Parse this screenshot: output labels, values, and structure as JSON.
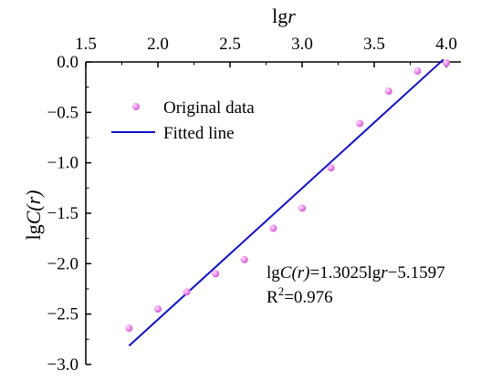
{
  "chart_data": {
    "type": "scatter",
    "xlabel_prefix": "lg",
    "xlabel_var": "r",
    "ylabel_prefix": "lg",
    "ylabel_var": "C(r)",
    "xlim": [
      1.5,
      4.0
    ],
    "ylim": [
      -3.0,
      0.0
    ],
    "xticks": [
      "1.5",
      "2.0",
      "2.5",
      "3.0",
      "3.5",
      "4.0"
    ],
    "yticks": [
      "0.0",
      "−0.5",
      "−1.0",
      "−1.5",
      "−2.0",
      "−2.5",
      "−3.0"
    ],
    "xtick_values": [
      1.5,
      2.0,
      2.5,
      3.0,
      3.5,
      4.0
    ],
    "ytick_values": [
      0.0,
      -0.5,
      -1.0,
      -1.5,
      -2.0,
      -2.5,
      -3.0
    ],
    "series": [
      {
        "name": "Original data",
        "kind": "scatter",
        "color": "#f07ef0",
        "x": [
          1.8,
          2.0,
          2.2,
          2.4,
          2.6,
          2.8,
          3.0,
          3.2,
          3.4,
          3.6,
          3.8,
          4.0
        ],
        "y": [
          -2.64,
          -2.45,
          -2.28,
          -2.1,
          -1.96,
          -1.65,
          -1.45,
          -1.05,
          -0.61,
          -0.29,
          -0.09,
          -0.01
        ]
      },
      {
        "name": "Fitted line",
        "kind": "line",
        "color": "#1010c8",
        "slope": 1.3025,
        "intercept": -5.1597,
        "x_range": [
          1.8,
          3.98
        ]
      }
    ],
    "legend_position": "upper-left",
    "annotation": {
      "eq_lhs_prefix": "lg",
      "eq_lhs_var": "C(r)",
      "eq_rhs_1": "=1.3025lg",
      "eq_rhs_var": "r",
      "eq_rhs_2": "−5.1597",
      "r2_base": "R",
      "r2_sup": "2",
      "r2_value": "=0.976"
    },
    "grid": false
  }
}
